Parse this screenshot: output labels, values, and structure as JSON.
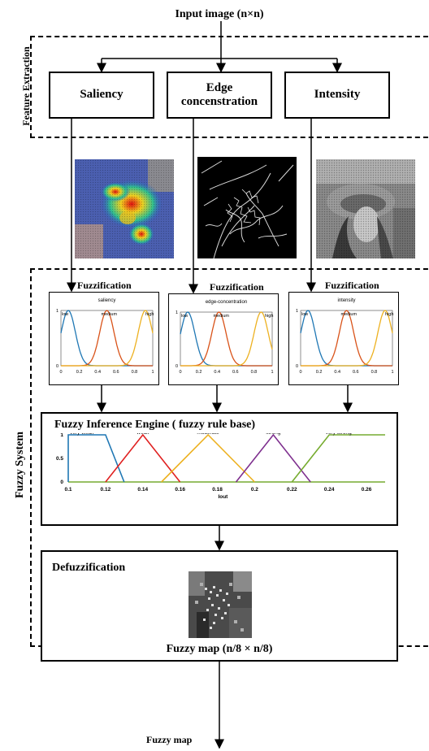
{
  "input_label": "Input image (n×n)",
  "feature_section": "Feature Extraction",
  "features": [
    "Saliency",
    "Edge\nconcenstration",
    "Intensity"
  ],
  "fuzzy_section": "Fuzzy System",
  "fuzzification_label": "Fuzzification",
  "mf_plots": [
    {
      "title": "saliency",
      "labels": [
        "low",
        "medium",
        "high"
      ]
    },
    {
      "title": "edge-concentration",
      "labels": [
        "low",
        "medium",
        "high"
      ]
    },
    {
      "title": "intensity",
      "labels": [
        "low",
        "medium",
        "high"
      ]
    }
  ],
  "mf_yticks": [
    "0",
    "1"
  ],
  "mf_xticks": [
    "0",
    "0.2",
    "0.4",
    "0.6",
    "0.8",
    "1"
  ],
  "inference_title": "Fuzzy Inference Engine ( fuzzy rule base)",
  "output_mf": {
    "labels": [
      "very weak",
      "weak",
      "moderate",
      "strong",
      "very strong"
    ],
    "yticks": [
      "0",
      "0.5",
      "1"
    ],
    "xticks": [
      "0.1",
      "0.12",
      "0.14",
      "0.16",
      "0.18",
      "0.2",
      "0.22",
      "0.24",
      "0.26"
    ],
    "xlabel": "Iout"
  },
  "defuzz_title": "Defuzzification",
  "fuzzy_map_caption": "Fuzzy map (n/8 × n/8)",
  "output_label": "Fuzzy map",
  "colors": {
    "blue": "#1f77b4",
    "orange": "#d95319",
    "yellow": "#edb120",
    "purple": "#7e2f8e",
    "green": "#77ac30",
    "red": "#e02020"
  }
}
